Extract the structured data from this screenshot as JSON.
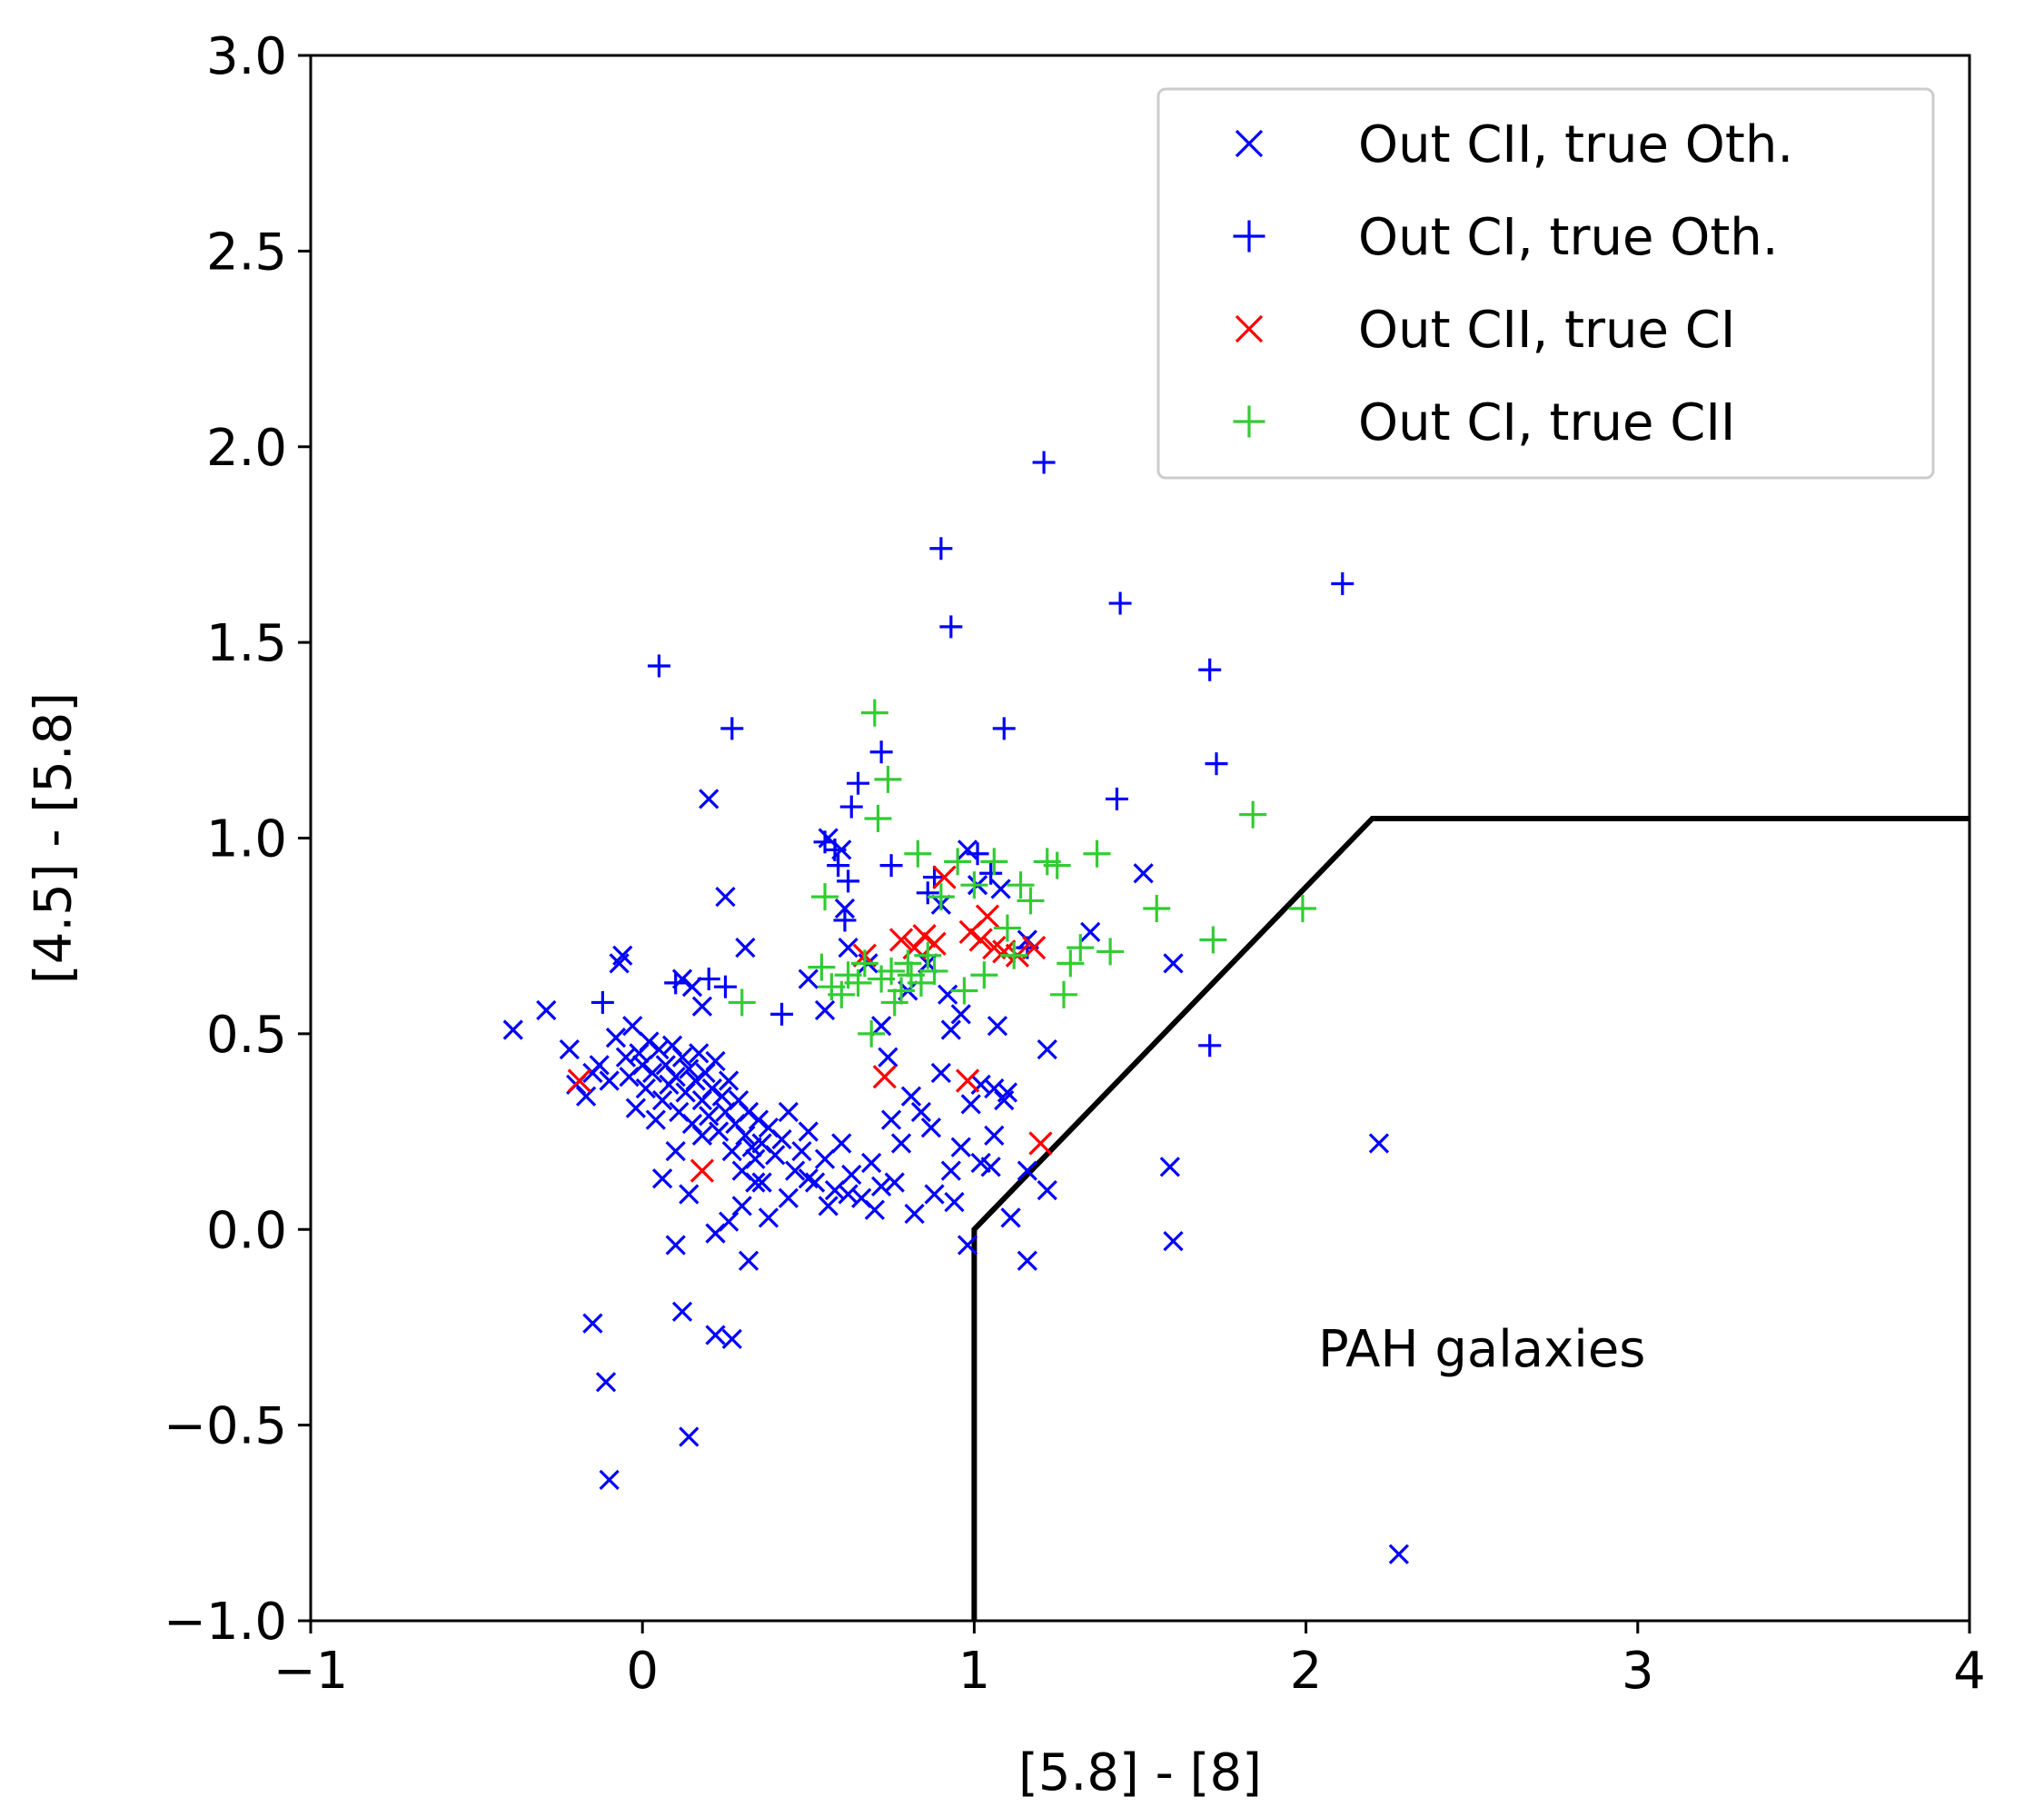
{
  "chart_data": {
    "type": "scatter",
    "title": "",
    "xlabel": "[5.8] - [8]",
    "ylabel": "[4.5] - [5.8]",
    "xlim": [
      -1,
      4
    ],
    "ylim": [
      -1.0,
      3.0
    ],
    "xticks": [
      -1,
      0,
      1,
      2,
      3,
      4
    ],
    "xtick_labels": [
      "−1",
      "0",
      "1",
      "2",
      "3",
      "4"
    ],
    "yticks": [
      -1.0,
      -0.5,
      0.0,
      0.5,
      1.0,
      1.5,
      2.0,
      2.5,
      3.0
    ],
    "ytick_labels": [
      "−1.0",
      "−0.5",
      "0.0",
      "0.5",
      "1.0",
      "1.5",
      "2.0",
      "2.5",
      "3.0"
    ],
    "grid": false,
    "legend_position": "top-right",
    "annotation": {
      "text": "PAH galaxies",
      "x": 2.42,
      "y": -0.35
    },
    "boundary": {
      "name": "PAH galaxy cut",
      "color": "#000000",
      "points": [
        [
          1.0,
          -1.0
        ],
        [
          1.0,
          0.0
        ],
        [
          2.2,
          1.05
        ],
        [
          4.0,
          1.05
        ]
      ]
    },
    "series": [
      {
        "name": "Out CII, true Oth.",
        "marker": "x",
        "color": "#0000ff",
        "points": [
          [
            -0.39,
            0.51
          ],
          [
            -0.29,
            0.56
          ],
          [
            -0.22,
            0.46
          ],
          [
            -0.2,
            0.37
          ],
          [
            -0.17,
            0.34
          ],
          [
            -0.15,
            0.4
          ],
          [
            -0.13,
            0.42
          ],
          [
            -0.1,
            0.38
          ],
          [
            -0.08,
            0.49
          ],
          [
            -0.07,
            0.68
          ],
          [
            -0.06,
            0.7
          ],
          [
            -0.05,
            0.44
          ],
          [
            -0.04,
            0.39
          ],
          [
            -0.03,
            0.52
          ],
          [
            -0.02,
            0.31
          ],
          [
            -0.01,
            0.45
          ],
          [
            0.0,
            0.42
          ],
          [
            0.01,
            0.36
          ],
          [
            0.02,
            0.48
          ],
          [
            0.03,
            0.4
          ],
          [
            0.04,
            0.28
          ],
          [
            0.05,
            0.46
          ],
          [
            0.06,
            0.33
          ],
          [
            0.07,
            0.42
          ],
          [
            0.08,
            0.37
          ],
          [
            0.09,
            0.47
          ],
          [
            0.1,
            0.39
          ],
          [
            0.11,
            0.3
          ],
          [
            0.12,
            0.44
          ],
          [
            0.13,
            0.35
          ],
          [
            0.14,
            0.41
          ],
          [
            0.15,
            0.27
          ],
          [
            0.16,
            0.38
          ],
          [
            0.17,
            0.45
          ],
          [
            0.18,
            0.33
          ],
          [
            0.19,
            0.4
          ],
          [
            0.2,
            0.29
          ],
          [
            0.21,
            0.36
          ],
          [
            0.22,
            0.43
          ],
          [
            0.23,
            0.25
          ],
          [
            0.24,
            0.34
          ],
          [
            0.25,
            0.3
          ],
          [
            0.26,
            0.38
          ],
          [
            0.27,
            0.2
          ],
          [
            0.28,
            0.27
          ],
          [
            0.29,
            0.33
          ],
          [
            0.3,
            0.15
          ],
          [
            0.31,
            0.24
          ],
          [
            0.32,
            0.3
          ],
          [
            0.33,
            0.21
          ],
          [
            0.34,
            0.18
          ],
          [
            0.35,
            0.28
          ],
          [
            0.36,
            0.22
          ],
          [
            0.38,
            0.26
          ],
          [
            0.4,
            0.19
          ],
          [
            0.42,
            0.23
          ],
          [
            0.44,
            0.3
          ],
          [
            0.46,
            0.15
          ],
          [
            0.48,
            0.2
          ],
          [
            0.5,
            0.25
          ],
          [
            0.52,
            0.12
          ],
          [
            0.55,
            0.18
          ],
          [
            0.58,
            0.1
          ],
          [
            0.6,
            0.22
          ],
          [
            0.63,
            0.14
          ],
          [
            0.66,
            0.08
          ],
          [
            0.69,
            0.17
          ],
          [
            0.72,
            0.11
          ],
          [
            0.75,
            0.28
          ],
          [
            0.78,
            0.22
          ],
          [
            0.81,
            0.34
          ],
          [
            0.84,
            0.3
          ],
          [
            0.87,
            0.26
          ],
          [
            0.9,
            0.4
          ],
          [
            0.93,
            0.15
          ],
          [
            0.96,
            0.21
          ],
          [
            0.99,
            0.32
          ],
          [
            1.02,
            0.17
          ],
          [
            1.06,
            0.24
          ],
          [
            1.1,
            0.35
          ],
          [
            0.06,
            0.13
          ],
          [
            0.1,
            0.2
          ],
          [
            0.14,
            0.09
          ],
          [
            0.18,
            0.24
          ],
          [
            0.22,
            -0.01
          ],
          [
            0.26,
            0.02
          ],
          [
            0.3,
            0.06
          ],
          [
            0.34,
            0.12
          ],
          [
            0.38,
            0.03
          ],
          [
            0.44,
            0.08
          ],
          [
            0.5,
            0.13
          ],
          [
            0.56,
            0.06
          ],
          [
            0.62,
            0.09
          ],
          [
            0.7,
            0.05
          ],
          [
            0.76,
            0.12
          ],
          [
            0.82,
            0.04
          ],
          [
            0.88,
            0.09
          ],
          [
            0.94,
            0.07
          ],
          [
            0.98,
            -0.04
          ],
          [
            1.05,
            0.16
          ],
          [
            1.11,
            0.03
          ],
          [
            1.16,
            0.15
          ],
          [
            1.22,
            0.1
          ],
          [
            -0.15,
            -0.24
          ],
          [
            -0.11,
            -0.39
          ],
          [
            -0.1,
            -0.64
          ],
          [
            0.1,
            -0.04
          ],
          [
            0.12,
            -0.21
          ],
          [
            0.14,
            -0.53
          ],
          [
            0.22,
            -0.27
          ],
          [
            0.27,
            -0.28
          ],
          [
            0.32,
            -0.08
          ],
          [
            0.36,
            0.12
          ],
          [
            0.12,
            0.64
          ],
          [
            0.15,
            0.62
          ],
          [
            0.18,
            0.57
          ],
          [
            0.2,
            1.1
          ],
          [
            0.25,
            0.85
          ],
          [
            0.31,
            0.72
          ],
          [
            0.5,
            0.64
          ],
          [
            0.55,
            0.56
          ],
          [
            0.56,
            1.0
          ],
          [
            0.6,
            0.97
          ],
          [
            0.61,
            0.82
          ],
          [
            0.62,
            0.72
          ],
          [
            0.68,
            0.68
          ],
          [
            0.72,
            0.52
          ],
          [
            0.74,
            0.44
          ],
          [
            0.8,
            0.61
          ],
          [
            0.86,
            0.68
          ],
          [
            0.9,
            0.83
          ],
          [
            0.92,
            0.6
          ],
          [
            0.93,
            0.51
          ],
          [
            0.96,
            0.55
          ],
          [
            0.98,
            0.97
          ],
          [
            1.01,
            0.88
          ],
          [
            1.07,
            0.52
          ],
          [
            1.08,
            0.87
          ],
          [
            1.16,
            0.74
          ],
          [
            1.22,
            0.46
          ],
          [
            1.35,
            0.76
          ],
          [
            1.51,
            0.91
          ],
          [
            1.6,
            0.68
          ],
          [
            1.16,
            -0.08
          ],
          [
            1.02,
            0.37
          ],
          [
            1.06,
            0.36
          ],
          [
            1.09,
            0.33
          ],
          [
            1.59,
            0.16
          ],
          [
            1.6,
            -0.03
          ],
          [
            2.22,
            0.22
          ],
          [
            2.28,
            -0.83
          ]
        ]
      },
      {
        "name": "Out CI, true Oth.",
        "marker": "+",
        "color": "#0000ff",
        "points": [
          [
            0.05,
            1.44
          ],
          [
            0.27,
            1.28
          ],
          [
            0.9,
            1.74
          ],
          [
            0.93,
            1.54
          ],
          [
            1.09,
            1.28
          ],
          [
            1.21,
            1.96
          ],
          [
            1.44,
            1.6
          ],
          [
            1.43,
            1.1
          ],
          [
            2.11,
            1.65
          ],
          [
            1.71,
            1.43
          ],
          [
            1.73,
            1.19
          ],
          [
            1.95,
            2.01
          ],
          [
            0.72,
            1.22
          ],
          [
            0.63,
            1.08
          ],
          [
            0.65,
            1.14
          ],
          [
            0.55,
            0.99
          ],
          [
            0.58,
            0.97
          ],
          [
            0.59,
            0.93
          ],
          [
            0.62,
            0.89
          ],
          [
            0.61,
            0.79
          ],
          [
            0.75,
            0.93
          ],
          [
            0.86,
            0.86
          ],
          [
            0.88,
            0.9
          ],
          [
            1.01,
            0.96
          ],
          [
            1.05,
            0.91
          ],
          [
            1.16,
            0.72
          ],
          [
            0.42,
            0.55
          ],
          [
            0.25,
            0.62
          ],
          [
            0.2,
            0.64
          ],
          [
            0.1,
            0.63
          ],
          [
            -0.12,
            0.58
          ],
          [
            1.71,
            0.47
          ]
        ]
      },
      {
        "name": "Out CII, true CI",
        "marker": "x",
        "color": "#ff0000",
        "points": [
          [
            -0.19,
            0.38
          ],
          [
            0.18,
            0.15
          ],
          [
            0.67,
            0.7
          ],
          [
            0.73,
            0.39
          ],
          [
            0.78,
            0.74
          ],
          [
            0.82,
            0.72
          ],
          [
            0.85,
            0.75
          ],
          [
            0.88,
            0.73
          ],
          [
            0.91,
            0.9
          ],
          [
            0.98,
            0.38
          ],
          [
            0.99,
            0.76
          ],
          [
            1.02,
            0.74
          ],
          [
            1.04,
            0.8
          ],
          [
            1.06,
            0.72
          ],
          [
            1.09,
            0.71
          ],
          [
            1.13,
            0.7
          ],
          [
            1.18,
            0.72
          ],
          [
            1.2,
            0.22
          ]
        ]
      },
      {
        "name": "Out CI, true CII",
        "marker": "+",
        "color": "#33cc33",
        "points": [
          [
            0.3,
            0.58
          ],
          [
            0.54,
            0.67
          ],
          [
            0.55,
            0.85
          ],
          [
            0.57,
            0.62
          ],
          [
            0.6,
            0.6
          ],
          [
            0.62,
            0.65
          ],
          [
            0.65,
            0.63
          ],
          [
            0.67,
            0.68
          ],
          [
            0.69,
            0.5
          ],
          [
            0.7,
            1.32
          ],
          [
            0.71,
            1.05
          ],
          [
            0.72,
            0.64
          ],
          [
            0.74,
            1.15
          ],
          [
            0.75,
            0.66
          ],
          [
            0.76,
            0.58
          ],
          [
            0.78,
            0.61
          ],
          [
            0.8,
            0.68
          ],
          [
            0.81,
            0.65
          ],
          [
            0.83,
            0.96
          ],
          [
            0.84,
            0.63
          ],
          [
            0.86,
            0.7
          ],
          [
            0.88,
            0.66
          ],
          [
            0.9,
            0.85
          ],
          [
            0.95,
            0.94
          ],
          [
            0.97,
            0.61
          ],
          [
            1.0,
            0.88
          ],
          [
            1.03,
            0.65
          ],
          [
            1.06,
            0.94
          ],
          [
            1.1,
            0.77
          ],
          [
            1.12,
            0.7
          ],
          [
            1.14,
            0.88
          ],
          [
            1.17,
            0.84
          ],
          [
            1.22,
            0.94
          ],
          [
            1.25,
            0.93
          ],
          [
            1.27,
            0.6
          ],
          [
            1.29,
            0.68
          ],
          [
            1.32,
            0.72
          ],
          [
            1.37,
            0.96
          ],
          [
            1.41,
            0.71
          ],
          [
            1.55,
            0.82
          ],
          [
            1.72,
            0.74
          ],
          [
            1.84,
            1.06
          ],
          [
            1.99,
            0.82
          ]
        ]
      }
    ]
  }
}
